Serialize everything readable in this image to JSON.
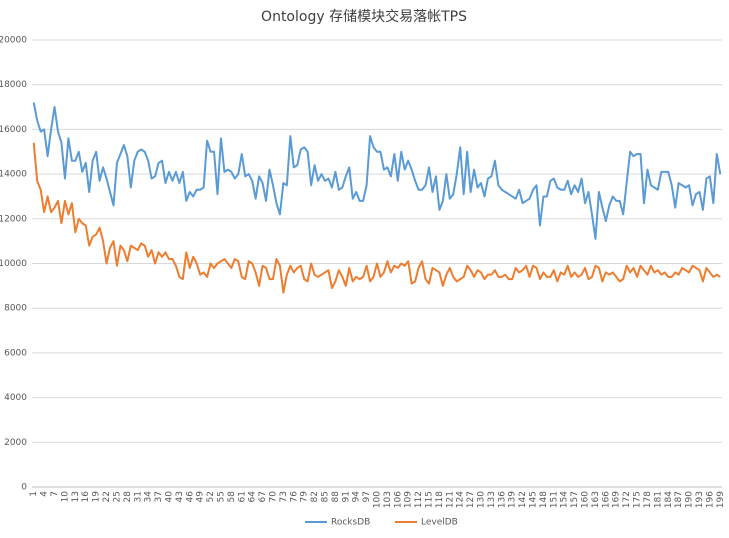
{
  "chart_data": {
    "type": "line",
    "title": "Ontology 存储模块交易落帐TPS",
    "categories": [
      1,
      null,
      null,
      4,
      null,
      null,
      7,
      null,
      null,
      10,
      null,
      null,
      13,
      null,
      null,
      16,
      null,
      null,
      19,
      null,
      null,
      22,
      null,
      null,
      25,
      null,
      null,
      28,
      null,
      null,
      31,
      null,
      null,
      34,
      null,
      null,
      37,
      null,
      null,
      40,
      null,
      null,
      43,
      null,
      null,
      46,
      null,
      null,
      49,
      null,
      null,
      52,
      null,
      null,
      55,
      null,
      null,
      58,
      null,
      null,
      61,
      null,
      null,
      64,
      null,
      null,
      67,
      null,
      null,
      70,
      null,
      null,
      73,
      null,
      null,
      76,
      null,
      null,
      79,
      null,
      null,
      82,
      null,
      null,
      85,
      null,
      null,
      88,
      null,
      null,
      91,
      null,
      null,
      94,
      null,
      null,
      97,
      null,
      null,
      100,
      null,
      null,
      103,
      null,
      null,
      106,
      null,
      null,
      109,
      null,
      null,
      112,
      null,
      null,
      115,
      null,
      null,
      118,
      null,
      null,
      121,
      null,
      null,
      124,
      null,
      null,
      127,
      null,
      null,
      130,
      null,
      null,
      133,
      null,
      null,
      136,
      null,
      null,
      139,
      null,
      null,
      142,
      null,
      null,
      145,
      null,
      null,
      148,
      null,
      null,
      151,
      null,
      null,
      154,
      null,
      null,
      157,
      null,
      null,
      160,
      null,
      null,
      163,
      null,
      null,
      166,
      null,
      null,
      169,
      null,
      null,
      172,
      null,
      null,
      175,
      null,
      null,
      178,
      null,
      null,
      181,
      null,
      null,
      184,
      null,
      null,
      187,
      null,
      null,
      190,
      null,
      null,
      193,
      null,
      null,
      196,
      null,
      null,
      199
    ],
    "series": [
      {
        "name": "RocksDB",
        "color": "#5b9bd5",
        "values": [
          17200,
          16400,
          15900,
          16000,
          14800,
          16000,
          17000,
          15900,
          15400,
          13800,
          15600,
          14600,
          14600,
          15000,
          14100,
          14500,
          13200,
          14600,
          15000,
          13700,
          14300,
          13800,
          13200,
          12600,
          14500,
          14900,
          15300,
          14800,
          13400,
          14600,
          15000,
          15100,
          15000,
          14600,
          13800,
          13900,
          14500,
          14600,
          13600,
          14100,
          13700,
          14100,
          13600,
          14100,
          12800,
          13200,
          13000,
          13300,
          13300,
          13400,
          15500,
          15000,
          15000,
          13100,
          15600,
          14100,
          14200,
          14100,
          13800,
          14000,
          14900,
          13900,
          14000,
          13700,
          12900,
          13900,
          13600,
          12800,
          14200,
          13500,
          12700,
          12200,
          13600,
          13500,
          15700,
          14300,
          14400,
          15100,
          15200,
          15000,
          13500,
          14400,
          13700,
          14000,
          13700,
          13800,
          13400,
          14100,
          13300,
          13400,
          13900,
          14300,
          12900,
          13200,
          12800,
          12800,
          13500,
          15700,
          15200,
          15000,
          15000,
          14200,
          14300,
          13900,
          14900,
          13700,
          15000,
          14200,
          14600,
          14200,
          13700,
          13300,
          13300,
          13500,
          14300,
          13200,
          13900,
          12400,
          12800,
          14000,
          12900,
          13100,
          14000,
          15200,
          13100,
          15000,
          13200,
          14200,
          13400,
          13600,
          13000,
          13800,
          13900,
          14600,
          13500,
          13300,
          13200,
          13100,
          13000,
          12900,
          13300,
          12700,
          12800,
          12900,
          13300,
          13500,
          11700,
          13000,
          13000,
          13700,
          13800,
          13400,
          13300,
          13300,
          13700,
          13100,
          13500,
          13200,
          13800,
          12700,
          13200,
          12200,
          11100,
          13200,
          12500,
          11900,
          12600,
          13000,
          12800,
          12800,
          12200,
          13600,
          15000,
          14800,
          14900,
          14900,
          12700,
          14200,
          13500,
          13400,
          13300,
          14100,
          14100,
          14100,
          13500,
          12500,
          13600,
          13500,
          13400,
          13500,
          12600,
          13100,
          13200,
          12400,
          13800,
          13900,
          12700,
          14900,
          14000
        ]
      },
      {
        "name": "LevelDB",
        "color": "#ed7d31",
        "values": [
          15400,
          13700,
          13300,
          12300,
          13000,
          12300,
          12500,
          12800,
          11800,
          12800,
          12200,
          12700,
          11400,
          12000,
          11800,
          11700,
          10800,
          11200,
          11300,
          11600,
          11000,
          10000,
          10700,
          11000,
          9900,
          10800,
          10600,
          10100,
          10800,
          10700,
          10600,
          10900,
          10800,
          10300,
          10600,
          10000,
          10500,
          10300,
          10500,
          10200,
          10200,
          9900,
          9400,
          9300,
          10500,
          9800,
          10300,
          10000,
          9500,
          9600,
          9400,
          10000,
          9800,
          10000,
          10100,
          10200,
          10000,
          9800,
          10200,
          10100,
          9400,
          9300,
          10100,
          10000,
          9600,
          9000,
          9900,
          9800,
          9300,
          9300,
          10200,
          9900,
          8700,
          9500,
          9900,
          9600,
          9800,
          9900,
          9300,
          9200,
          10000,
          9500,
          9400,
          9500,
          9600,
          9700,
          8900,
          9200,
          9700,
          9400,
          9000,
          9800,
          9200,
          9400,
          9300,
          9400,
          9900,
          9200,
          9400,
          10000,
          9400,
          9600,
          10100,
          9600,
          9900,
          9800,
          10000,
          9900,
          10100,
          9100,
          9200,
          9800,
          10100,
          9300,
          9100,
          9800,
          9700,
          9600,
          9000,
          9500,
          9800,
          9400,
          9200,
          9300,
          9400,
          9900,
          9700,
          9400,
          9700,
          9600,
          9300,
          9500,
          9500,
          9700,
          9400,
          9400,
          9500,
          9300,
          9300,
          9800,
          9600,
          9700,
          9900,
          9400,
          9900,
          9800,
          9300,
          9600,
          9400,
          9400,
          9700,
          9200,
          9600,
          9500,
          9900,
          9400,
          9600,
          9400,
          9500,
          9800,
          9300,
          9400,
          9900,
          9800,
          9200,
          9600,
          9500,
          9600,
          9400,
          9200,
          9300,
          9900,
          9600,
          9800,
          9400,
          9900,
          9700,
          9500,
          9900,
          9600,
          9700,
          9500,
          9600,
          9400,
          9400,
          9600,
          9500,
          9800,
          9700,
          9600,
          9900,
          9800,
          9700,
          9200,
          9800,
          9600,
          9400,
          9500,
          9400
        ]
      }
    ],
    "ylim": [
      0,
      20000
    ],
    "yticks": [
      0,
      2000,
      4000,
      6000,
      8000,
      10000,
      12000,
      14000,
      16000,
      18000,
      20000
    ],
    "grid": true,
    "legend": "bottom"
  }
}
